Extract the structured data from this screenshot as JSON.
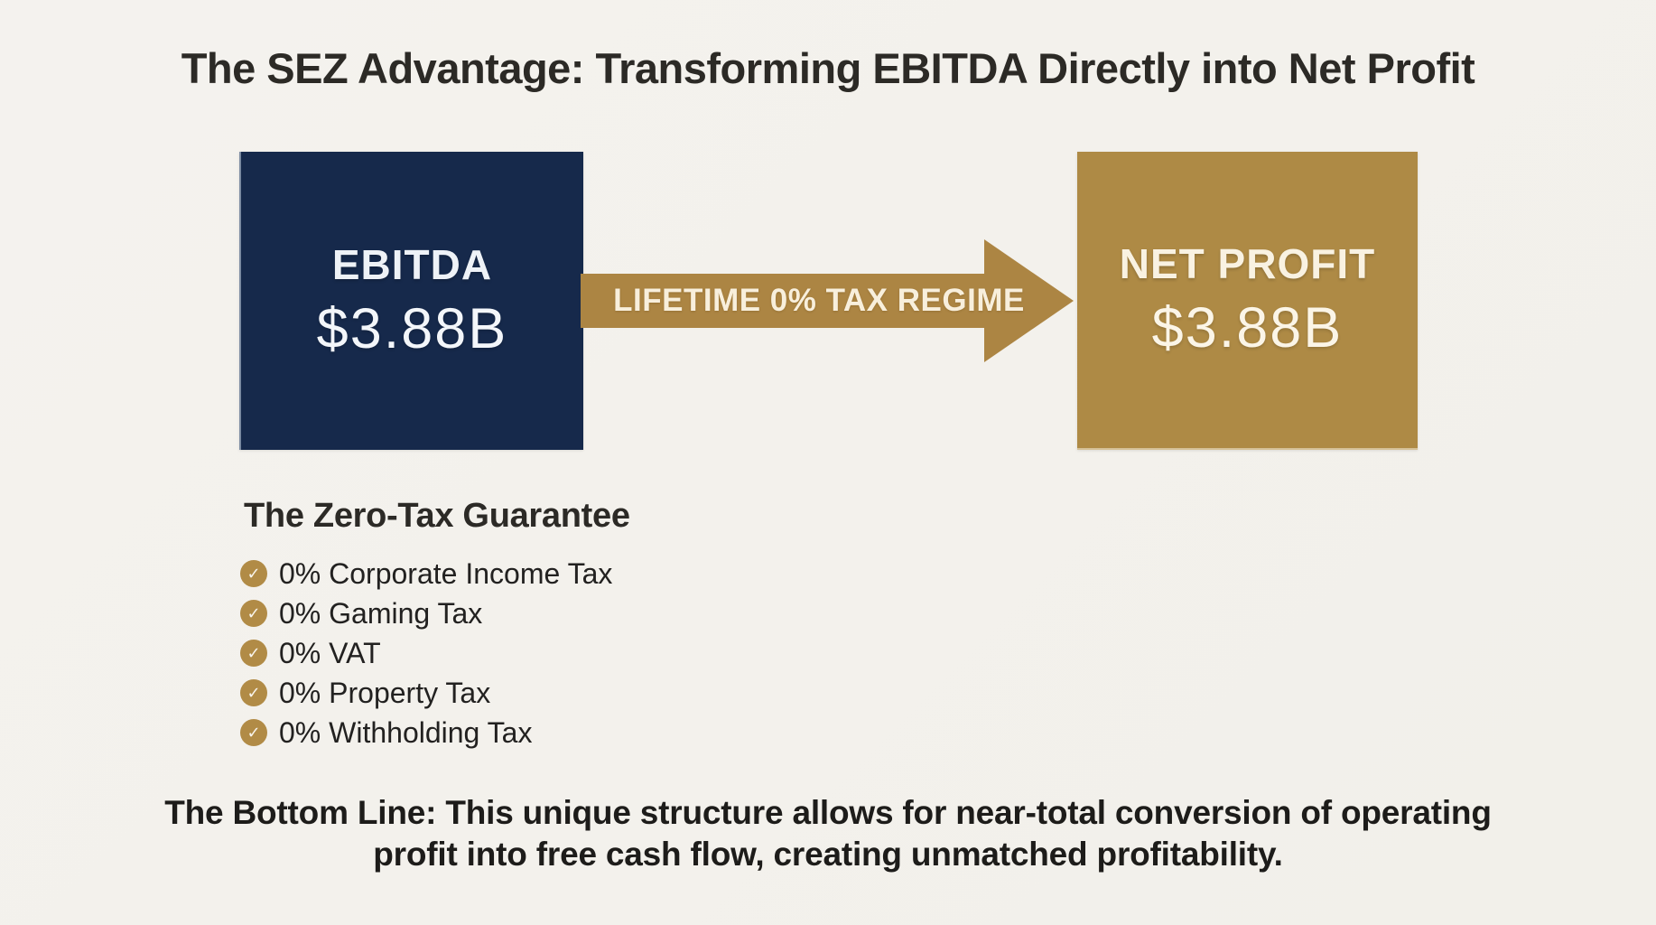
{
  "title": "The SEZ Advantage: Transforming EBITDA Directly into Net Profit",
  "flow": {
    "ebitda_box": {
      "label": "EBITDA",
      "value": "$3.88B"
    },
    "arrow_label": "LIFETIME 0% TAX REGIME",
    "net_profit_box": {
      "label": "NET PROFIT",
      "value": "$3.88B"
    }
  },
  "guarantee": {
    "heading": "The Zero-Tax Guarantee",
    "check_glyph": "✓",
    "items": [
      "0% Corporate Income Tax",
      "0% Gaming Tax",
      "0% VAT",
      "0% Property Tax",
      "0% Withholding Tax"
    ]
  },
  "bottom_line": {
    "line1": "The Bottom Line: This unique structure allows for near-total conversion of operating",
    "line2": "profit into free cash flow, creating unmatched profitability."
  },
  "colors": {
    "background": "#f3f1ec",
    "navy_box": "#16294b",
    "gold_box": "#ae8a45",
    "arrow_gold": "#ac8543",
    "heading_text": "#2c2a26",
    "cream_text": "#f8efdc"
  }
}
